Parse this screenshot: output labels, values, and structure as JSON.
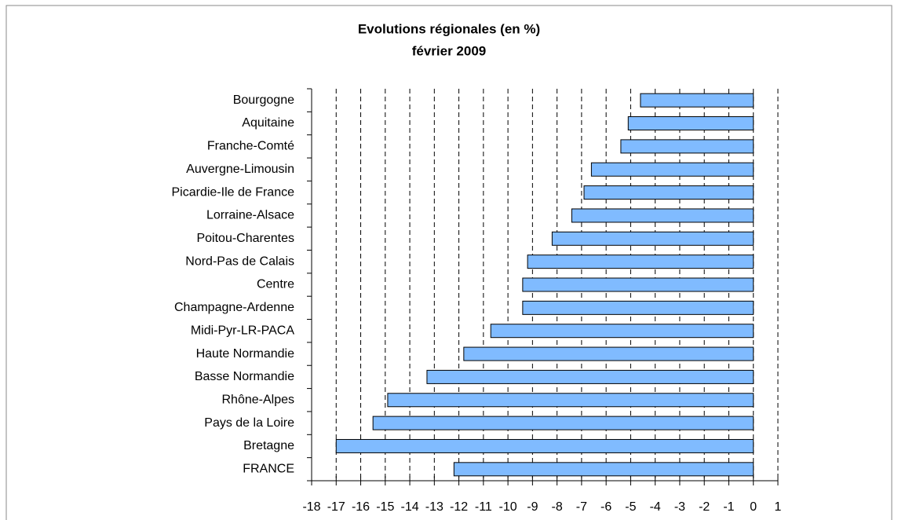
{
  "chart_data": {
    "type": "bar",
    "orientation": "horizontal",
    "title": "Evolutions régionales (en %)",
    "subtitle": "février 2009",
    "categories": [
      "Bourgogne",
      "Aquitaine",
      "Franche-Comté",
      "Auvergne-Limousin",
      "Picardie-Ile de France",
      "Lorraine-Alsace",
      "Poitou-Charentes",
      "Nord-Pas de Calais",
      "Centre",
      "Champagne-Ardenne",
      "Midi-Pyr-LR-PACA",
      "Haute Normandie",
      "Basse Normandie",
      "Rhône-Alpes",
      "Pays de la Loire",
      "Bretagne",
      "FRANCE"
    ],
    "values": [
      -4.6,
      -5.1,
      -5.4,
      -6.6,
      -6.9,
      -7.4,
      -8.2,
      -9.2,
      -9.4,
      -9.4,
      -10.7,
      -11.8,
      -13.3,
      -14.9,
      -15.5,
      -17.0,
      -12.2
    ],
    "color": "#80bbff",
    "xlim": [
      -18,
      1
    ],
    "xticks": [
      -18,
      -17,
      -16,
      -15,
      -14,
      -13,
      -12,
      -11,
      -10,
      -9,
      -8,
      -7,
      -6,
      -5,
      -4,
      -3,
      -2,
      -1,
      0,
      1
    ],
    "grid": true
  }
}
